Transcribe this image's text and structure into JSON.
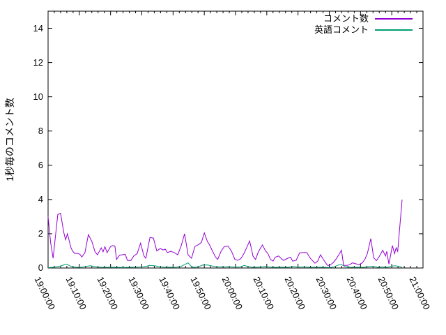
{
  "chart_data": {
    "type": "line",
    "title": "",
    "xlabel": "",
    "ylabel": "1秒毎のコメント数",
    "ylim": [
      0,
      15
    ],
    "y_ticks": [
      0,
      2,
      4,
      6,
      8,
      10,
      12,
      14
    ],
    "x_range_minutes": [
      0,
      120
    ],
    "x_major_tick_interval_minutes": 10,
    "x_minor_tick_interval_minutes": 2,
    "x_tick_labels": [
      "19:00:00",
      "19:10:00",
      "19:20:00",
      "19:30:00",
      "19:40:00",
      "19:50:00",
      "20:00:00",
      "20:10:00",
      "20:20:00",
      "20:30:00",
      "20:40:00",
      "20:50:00",
      "21:00:00"
    ],
    "grid": false,
    "legend_position": "top-right-inside",
    "axis_color": "#000000",
    "background_color": "#ffffff",
    "series": [
      {
        "name": "コメント数",
        "color": "#9400d3",
        "points_minutes_from_19_00": [
          [
            0,
            3.0
          ],
          [
            0.8,
            1.5
          ],
          [
            1.6,
            0.57
          ],
          [
            2.2,
            1.6
          ],
          [
            3.1,
            3.12
          ],
          [
            4,
            3.2
          ],
          [
            5,
            2.1
          ],
          [
            5.6,
            1.65
          ],
          [
            6.2,
            2.0
          ],
          [
            7.3,
            1.2
          ],
          [
            7.8,
            1.0
          ],
          [
            8.5,
            0.85
          ],
          [
            9.5,
            0.85
          ],
          [
            10.2,
            0.8
          ],
          [
            10.8,
            0.64
          ],
          [
            11.8,
            0.9
          ],
          [
            12.9,
            1.95
          ],
          [
            14,
            1.55
          ],
          [
            15,
            0.95
          ],
          [
            15.8,
            0.77
          ],
          [
            17,
            1.18
          ],
          [
            17.6,
            0.95
          ],
          [
            18.2,
            1.24
          ],
          [
            18.9,
            0.9
          ],
          [
            20,
            1.25
          ],
          [
            20.6,
            1.31
          ],
          [
            21.4,
            1.28
          ],
          [
            21.9,
            0.5
          ],
          [
            22.9,
            0.75
          ],
          [
            24,
            0.78
          ],
          [
            24.7,
            0.8
          ],
          [
            25.4,
            0.44
          ],
          [
            26.5,
            0.44
          ],
          [
            27.4,
            0.7
          ],
          [
            28.5,
            0.84
          ],
          [
            29.6,
            1.45
          ],
          [
            30.7,
            0.7
          ],
          [
            31.3,
            0.57
          ],
          [
            32.6,
            1.78
          ],
          [
            33.7,
            1.75
          ],
          [
            34.8,
            1.0
          ],
          [
            35.9,
            1.14
          ],
          [
            36.8,
            1.05
          ],
          [
            37.5,
            1.1
          ],
          [
            38.2,
            0.9
          ],
          [
            39.3,
            0.98
          ],
          [
            40.4,
            0.9
          ],
          [
            41.5,
            0.77
          ],
          [
            42.6,
            1.3
          ],
          [
            43.7,
            2.0
          ],
          [
            44.8,
            0.77
          ],
          [
            45.9,
            0.57
          ],
          [
            47,
            1.26
          ],
          [
            48.2,
            1.37
          ],
          [
            49.1,
            1.5
          ],
          [
            50,
            2.05
          ],
          [
            51,
            1.55
          ],
          [
            51.6,
            1.38
          ],
          [
            52.6,
            1.0
          ],
          [
            53.6,
            0.64
          ],
          [
            54.3,
            0.5
          ],
          [
            55.4,
            1.0
          ],
          [
            56.4,
            1.25
          ],
          [
            57.6,
            1.28
          ],
          [
            58.7,
            0.98
          ],
          [
            59.8,
            0.5
          ],
          [
            60.7,
            0.45
          ],
          [
            61.7,
            0.55
          ],
          [
            62.7,
            0.85
          ],
          [
            63.6,
            1.2
          ],
          [
            64.5,
            1.58
          ],
          [
            65.6,
            0.69
          ],
          [
            66.4,
            0.5
          ],
          [
            67.3,
            0.94
          ],
          [
            68.6,
            1.35
          ],
          [
            69.6,
            1.0
          ],
          [
            70.3,
            0.86
          ],
          [
            71.2,
            0.5
          ],
          [
            72,
            0.4
          ],
          [
            72.7,
            0.63
          ],
          [
            73.8,
            0.7
          ],
          [
            74.9,
            0.5
          ],
          [
            75.4,
            0.45
          ],
          [
            76.5,
            0.55
          ],
          [
            77.6,
            0.63
          ],
          [
            78.3,
            0.4
          ],
          [
            79.4,
            0.45
          ],
          [
            80.5,
            0.88
          ],
          [
            81.6,
            0.9
          ],
          [
            82.8,
            0.9
          ],
          [
            84,
            0.55
          ],
          [
            85.4,
            0.28
          ],
          [
            86.3,
            0.4
          ],
          [
            87.2,
            0.77
          ],
          [
            88.3,
            0.45
          ],
          [
            89.4,
            0.16
          ],
          [
            90.1,
            0.15
          ],
          [
            91.2,
            0.3
          ],
          [
            92.3,
            0.55
          ],
          [
            93.3,
            0.85
          ],
          [
            93.9,
            1.04
          ],
          [
            94.6,
            0.16
          ],
          [
            95.7,
            0.15
          ],
          [
            96.6,
            0.2
          ],
          [
            97.5,
            0.3
          ],
          [
            98.4,
            0.25
          ],
          [
            99.5,
            0.2
          ],
          [
            100.6,
            0.3
          ],
          [
            101.5,
            0.55
          ],
          [
            102.2,
            0.85
          ],
          [
            103.3,
            1.72
          ],
          [
            104.2,
            0.6
          ],
          [
            105.1,
            0.43
          ],
          [
            106.1,
            0.7
          ],
          [
            107.1,
            1.04
          ],
          [
            108,
            0.7
          ],
          [
            108.4,
            0.97
          ],
          [
            109.1,
            0.23
          ],
          [
            110.2,
            1.31
          ],
          [
            110.9,
            0.84
          ],
          [
            111.4,
            1.18
          ],
          [
            111.9,
            0.97
          ],
          [
            113.3,
            4.0
          ]
        ]
      },
      {
        "name": "英語コメント",
        "color": "#009e73",
        "points_minutes_from_19_00": [
          [
            0,
            0.02
          ],
          [
            1.5,
            0.04
          ],
          [
            3,
            0.08
          ],
          [
            4,
            0.12
          ],
          [
            5,
            0.18
          ],
          [
            6,
            0.23
          ],
          [
            6.8,
            0.14
          ],
          [
            8,
            0.06
          ],
          [
            9.5,
            0.04
          ],
          [
            11,
            0.05
          ],
          [
            12.5,
            0.1
          ],
          [
            13.5,
            0.13
          ],
          [
            14.5,
            0.1
          ],
          [
            16,
            0.05
          ],
          [
            18,
            0.04
          ],
          [
            20,
            0.05
          ],
          [
            22,
            0.04
          ],
          [
            24,
            0.03
          ],
          [
            26,
            0.04
          ],
          [
            28,
            0.05
          ],
          [
            30,
            0.06
          ],
          [
            31.5,
            0.1
          ],
          [
            32.5,
            0.15
          ],
          [
            34,
            0.13
          ],
          [
            35.5,
            0.08
          ],
          [
            37,
            0.05
          ],
          [
            39,
            0.04
          ],
          [
            41,
            0.05
          ],
          [
            42.5,
            0.08
          ],
          [
            43.7,
            0.2
          ],
          [
            44.8,
            0.3
          ],
          [
            45.8,
            0.1
          ],
          [
            46.5,
            0.04
          ],
          [
            48,
            0.06
          ],
          [
            49.5,
            0.17
          ],
          [
            51,
            0.18
          ],
          [
            52.5,
            0.12
          ],
          [
            54,
            0.07
          ],
          [
            56,
            0.06
          ],
          [
            58,
            0.08
          ],
          [
            60,
            0.05
          ],
          [
            61.5,
            0.06
          ],
          [
            62.8,
            0.15
          ],
          [
            64,
            0.08
          ],
          [
            65.5,
            0.04
          ],
          [
            67,
            0.05
          ],
          [
            68.5,
            0.06
          ],
          [
            69.5,
            0.1
          ],
          [
            71,
            0.05
          ],
          [
            73,
            0.04
          ],
          [
            75,
            0.05
          ],
          [
            77,
            0.04
          ],
          [
            78.3,
            0.1
          ],
          [
            80,
            0.05
          ],
          [
            82,
            0.06
          ],
          [
            84,
            0.04
          ],
          [
            86,
            0.05
          ],
          [
            88,
            0.04
          ],
          [
            90,
            0.03
          ],
          [
            91.5,
            0.06
          ],
          [
            93,
            0.18
          ],
          [
            94,
            0.2
          ],
          [
            95,
            0.08
          ],
          [
            97,
            0.04
          ],
          [
            99,
            0.05
          ],
          [
            101,
            0.04
          ],
          [
            102.5,
            0.08
          ],
          [
            104,
            0.1
          ],
          [
            105.5,
            0.04
          ],
          [
            107,
            0.06
          ],
          [
            108.5,
            0.04
          ],
          [
            110,
            0.1
          ],
          [
            111,
            0.13
          ],
          [
            112,
            0.1
          ],
          [
            113.3,
            0.04
          ]
        ]
      }
    ]
  }
}
